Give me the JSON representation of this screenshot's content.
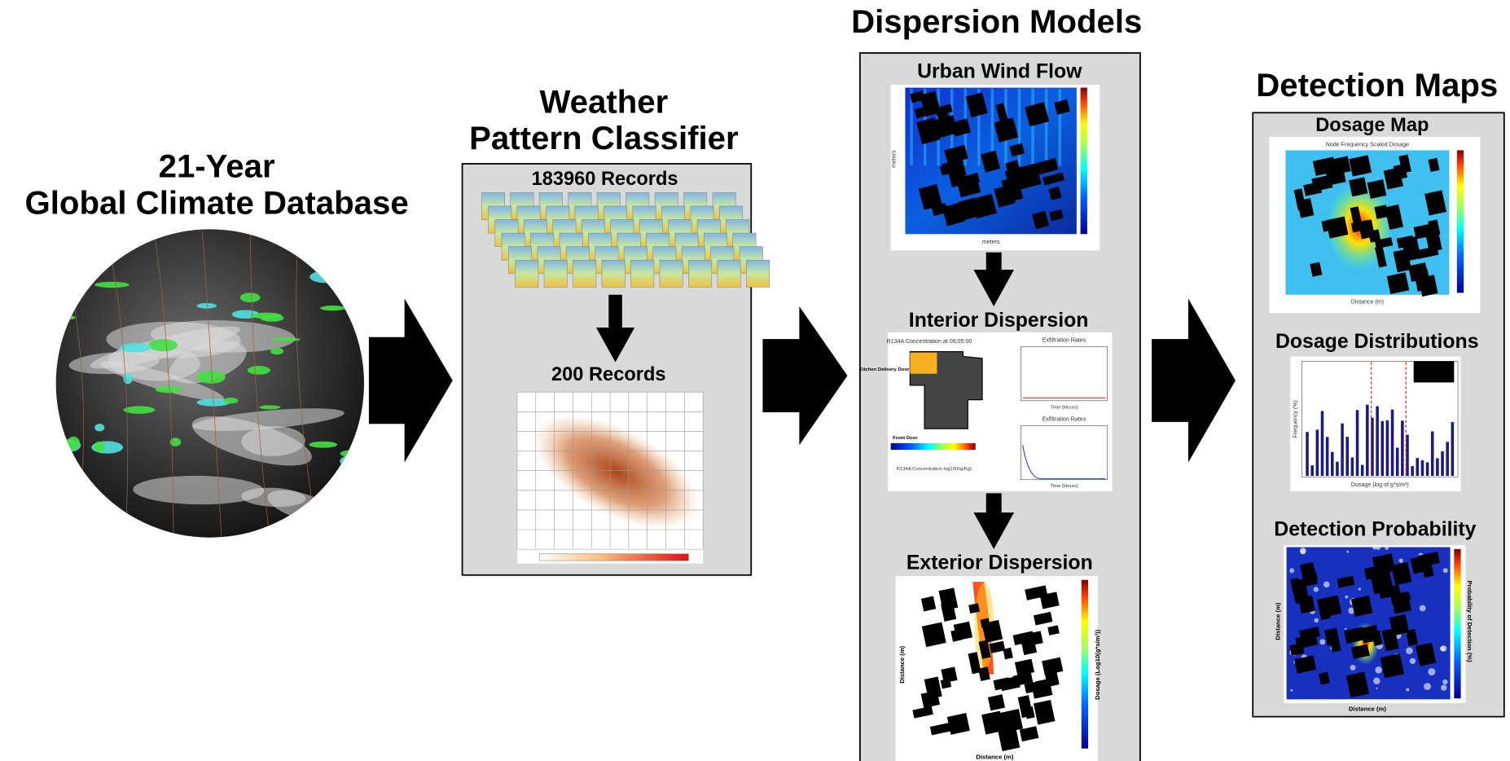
{
  "climate_database": {
    "title": [
      "21-Year",
      "Global Climate Database"
    ]
  },
  "classifier": {
    "title": [
      "Weather",
      "Pattern Classifier"
    ],
    "input_label": "183960 Records",
    "output_label": "200 Records"
  },
  "dispersion_models": {
    "title": "Dispersion Models",
    "panels": [
      {
        "title": "Urban Wind Flow",
        "x_label": "meters",
        "y_label": "meters"
      },
      {
        "title": "Interior Dispersion",
        "plot_title": "R134A Concentration at 06:05:00",
        "annotations": [
          "Kitchen Delivery Door",
          "Front Door"
        ],
        "side_plot_title": "Exfiltration Rates",
        "side_x_label": "Time (Hours)",
        "colorbar_label": "R134A Concentration log10(Kg/Kg)"
      },
      {
        "title": "Exterior Dispersion",
        "x_label": "Distance (m)",
        "y_label": "Distance (m)",
        "colorbar_label": "Dosage (Log10(g*s/m³))"
      }
    ]
  },
  "detection_maps": {
    "title": "Detection Maps",
    "panels": [
      {
        "title": "Dosage Map",
        "plot_title": "Node Frequency Scaled Dosage",
        "x_label": "Distance (m)"
      },
      {
        "title": "Dosage Distributions",
        "x_label": "Dosage (log of g*s/m³)",
        "y_label": "Frequency (%)"
      },
      {
        "title": "Detection Probability",
        "x_label": "Distance (m)",
        "y_label": "Distance (m)",
        "colorbar_label": "Probability of Detection (%)"
      }
    ]
  }
}
